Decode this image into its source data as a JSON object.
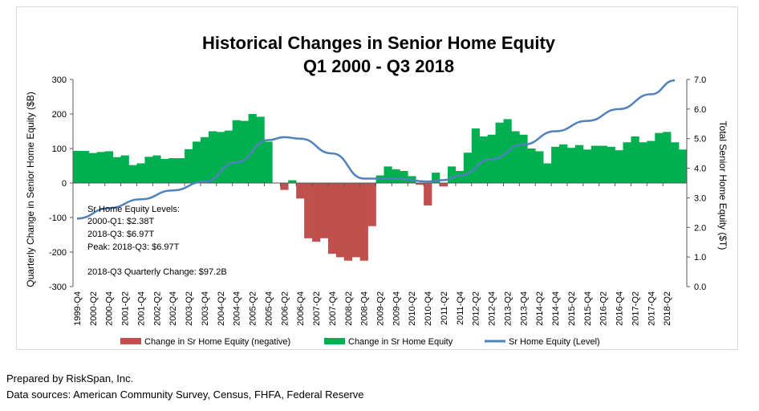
{
  "chart_data": {
    "type": "bar",
    "title": [
      "Historical Changes in Senior Home Equity",
      "Q1 2000 - Q3 2018"
    ],
    "ylabel": "Quarterly Change in Senior Home Equity ($B)",
    "y2label": "Total Senior Home Equity ($T)",
    "ylim": [
      -300,
      300
    ],
    "y2lim": [
      0,
      7
    ],
    "yticks": [
      "300",
      "200",
      "100",
      "0",
      "-100",
      "-200",
      "-300"
    ],
    "y2ticks": [
      "7.0",
      "6.0",
      "5.0",
      "4.0",
      "3.0",
      "2.0",
      "1.0",
      "0.0"
    ],
    "x_tick_labels": [
      "1999-Q4",
      "2000-Q2",
      "2000-Q4",
      "2001-Q2",
      "2001-Q4",
      "2002-Q2",
      "2002-Q4",
      "2003-Q2",
      "2003-Q4",
      "2004-Q2",
      "2004-Q4",
      "2005-Q2",
      "2005-Q4",
      "2006-Q2",
      "2006-Q4",
      "2007-Q2",
      "2007-Q4",
      "2008-Q2",
      "2008-Q4",
      "2009-Q2",
      "2009-Q4",
      "2010-Q2",
      "2010-Q4",
      "2011-Q2",
      "2011-Q4",
      "2012-Q2",
      "2012-Q4",
      "2013-Q2",
      "2013-Q4",
      "2014-Q2",
      "2014-Q4",
      "2015-Q2",
      "2015-Q4",
      "2016-Q2",
      "2016-Q4",
      "2017-Q2",
      "2017-Q4",
      "2018-Q2"
    ],
    "x_start": "1999-Q4",
    "x_end": "2018-Q3",
    "series": [
      {
        "name": "Change in Sr Home Equity (negative)",
        "kind": "bar",
        "color": "#c0504d",
        "values": [
          0,
          0,
          0,
          0,
          0,
          0,
          0,
          0,
          0,
          0,
          0,
          0,
          0,
          0,
          0,
          0,
          0,
          0,
          0,
          0,
          0,
          0,
          0,
          0,
          0,
          0,
          -20,
          0,
          -45,
          -160,
          -170,
          -160,
          -205,
          -215,
          -225,
          -215,
          -225,
          -125,
          0,
          0,
          0,
          0,
          0,
          -5,
          -65,
          0,
          -10,
          0,
          0,
          0,
          0,
          0,
          0,
          0,
          0,
          0,
          0,
          0,
          0,
          0,
          0,
          0,
          0,
          0,
          0,
          0,
          0,
          0,
          0,
          0,
          0,
          0,
          0,
          0,
          0,
          0
        ]
      },
      {
        "name": "Change in Sr Home Equity",
        "kind": "bar",
        "color": "#00b050",
        "values": [
          93,
          93,
          87,
          90,
          92,
          75,
          80,
          52,
          57,
          76,
          80,
          70,
          72,
          72,
          98,
          120,
          133,
          150,
          148,
          152,
          182,
          180,
          200,
          192,
          120,
          0,
          0,
          8,
          0,
          0,
          0,
          0,
          0,
          0,
          0,
          0,
          0,
          0,
          22,
          48,
          40,
          35,
          20,
          0,
          0,
          30,
          0,
          48,
          35,
          88,
          158,
          135,
          140,
          175,
          185,
          150,
          140,
          100,
          92,
          57,
          105,
          112,
          102,
          110,
          97,
          108,
          108,
          105,
          95,
          118,
          135,
          118,
          122,
          145,
          148,
          118,
          97
        ]
      },
      {
        "name": "Sr Home Equity (Level)",
        "kind": "line",
        "color": "#4f81bd",
        "x": [
          "1999-Q4",
          "2000-Q4",
          "2001-Q4",
          "2002-Q4",
          "2003-Q4",
          "2004-Q4",
          "2005-Q4",
          "2006-Q2",
          "2006-Q4",
          "2007-Q4",
          "2008-Q4",
          "2009-Q4",
          "2010-Q4",
          "2011-Q2",
          "2011-Q4",
          "2012-Q4",
          "2013-Q4",
          "2014-Q4",
          "2015-Q4",
          "2016-Q4",
          "2017-Q4",
          "2018-Q3"
        ],
        "values": [
          2.3,
          2.65,
          2.95,
          3.25,
          3.55,
          4.2,
          4.95,
          5.05,
          5.0,
          4.5,
          3.65,
          3.65,
          3.55,
          3.6,
          3.75,
          4.3,
          4.8,
          5.25,
          5.6,
          6.0,
          6.5,
          6.97
        ]
      }
    ],
    "annotations": [
      "Sr Home Equity Levels:",
      "2000-Q1: $2.38T",
      "2018-Q3: $6.97T",
      "Peak: 2018-Q3: $6.97T",
      "2018-Q3 Quarterly Change: $97.2B"
    ],
    "legend_position": "bottom",
    "grid": false
  },
  "footer": {
    "line1": "Prepared by RiskSpan, Inc.",
    "line2": "Data sources: American Community Survey, Census, FHFA, Federal Reserve"
  }
}
